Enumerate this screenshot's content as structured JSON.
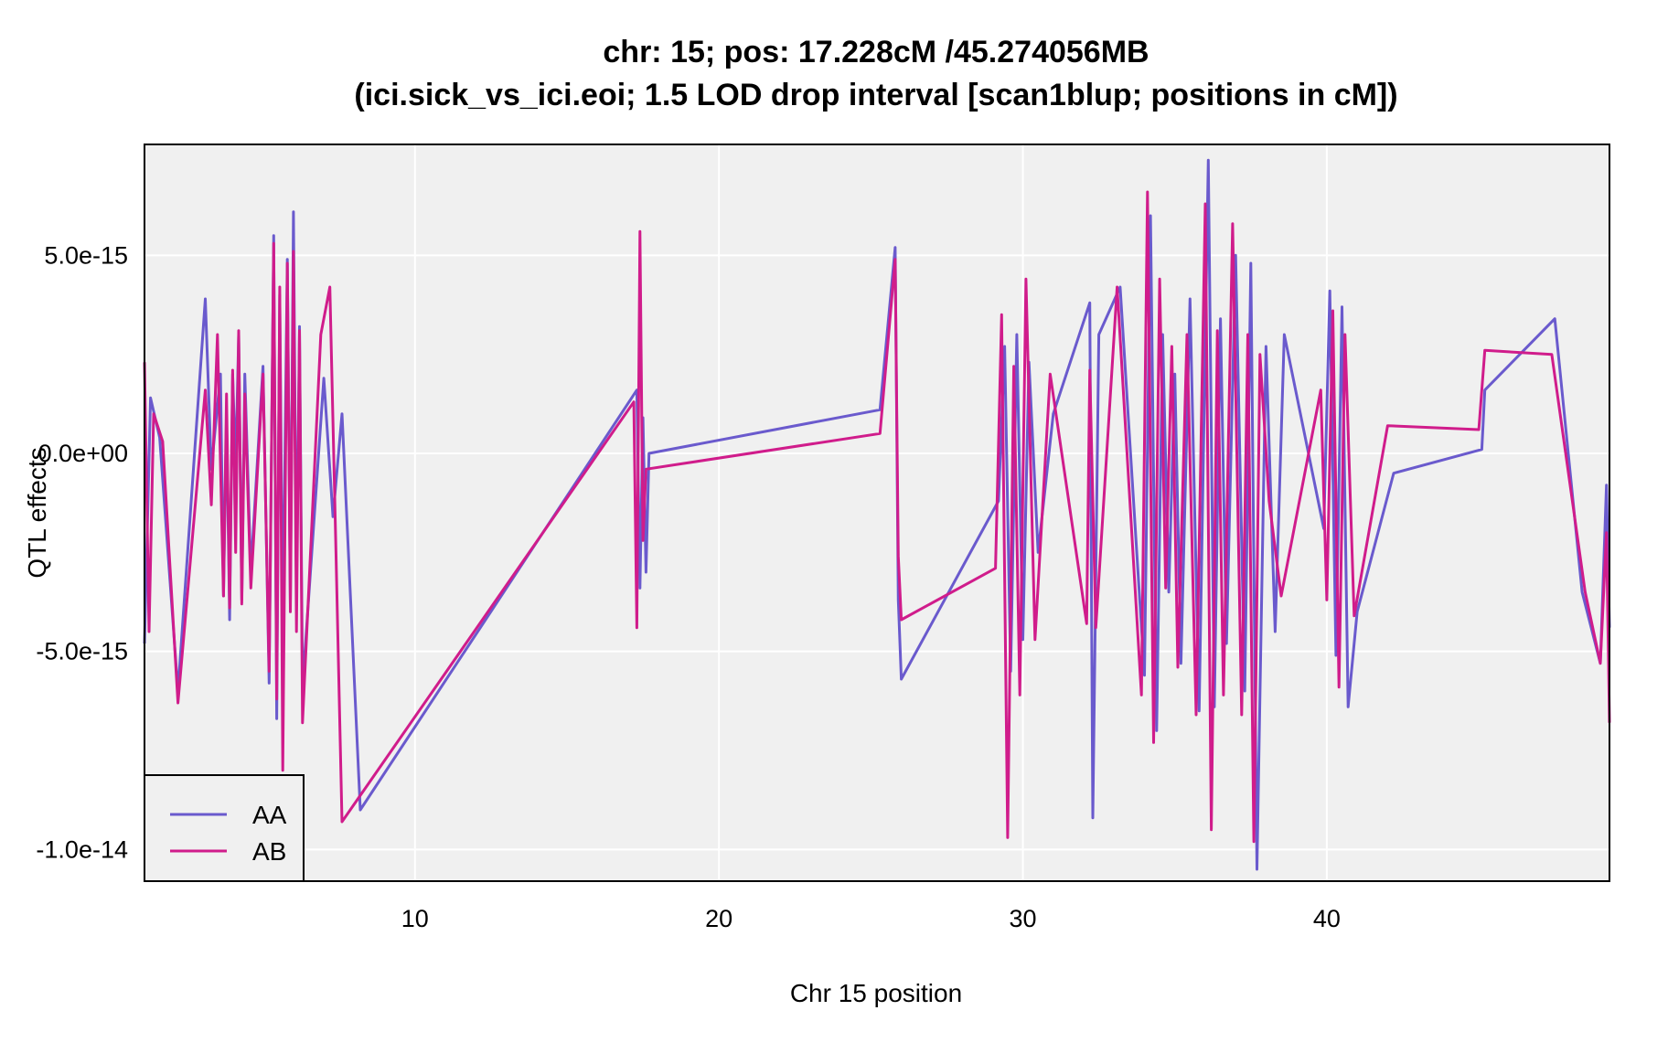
{
  "chart_data": {
    "type": "line",
    "title_line1": "chr: 15; pos: 17.228cM /45.274056MB",
    "title_line2": "(ici.sick_vs_ici.eoi; 1.5 LOD drop interval [scan1blup; positions in cM])",
    "xlabel": "Chr 15 position",
    "ylabel": "QTL effects",
    "xlim": [
      1.1,
      49.3
    ],
    "ylim": [
      -1.08e-14,
      7.8e-15
    ],
    "x_ticks": [
      {
        "value": 10,
        "label": "10"
      },
      {
        "value": 20,
        "label": "20"
      },
      {
        "value": 30,
        "label": "30"
      },
      {
        "value": 40,
        "label": "40"
      }
    ],
    "y_ticks": [
      {
        "value": 5e-15,
        "label": "5.0e-15"
      },
      {
        "value": 0,
        "label": "0.0e+00"
      },
      {
        "value": -5e-15,
        "label": "-5.0e-15"
      },
      {
        "value": -1e-14,
        "label": "-1.0e-14"
      }
    ],
    "grid": true,
    "legend_position": "bottom-left",
    "series": [
      {
        "name": "AA",
        "color": "#6A5ACD",
        "x": [
          1.1,
          1.3,
          1.6,
          2.2,
          3.1,
          3.3,
          3.6,
          3.7,
          3.8,
          3.9,
          4.0,
          4.1,
          4.2,
          4.3,
          4.4,
          4.6,
          5.0,
          5.2,
          5.35,
          5.45,
          5.55,
          5.65,
          5.8,
          5.9,
          6.0,
          6.1,
          6.2,
          6.3,
          7.0,
          7.3,
          7.6,
          8.2,
          17.3,
          17.4,
          17.5,
          17.6,
          17.7,
          25.3,
          25.8,
          25.9,
          26.0,
          29.2,
          29.4,
          29.6,
          29.8,
          30.0,
          30.2,
          30.5,
          31.0,
          32.2,
          32.3,
          32.5,
          33.2,
          34.0,
          34.2,
          34.4,
          34.6,
          34.8,
          35.0,
          35.2,
          35.5,
          35.8,
          36.1,
          36.3,
          36.5,
          36.7,
          37.0,
          37.3,
          37.5,
          37.7,
          38.0,
          38.3,
          38.6,
          39.9,
          40.1,
          40.3,
          40.5,
          40.7,
          41.0,
          42.2,
          45.1,
          45.2,
          47.5,
          48.4,
          49.0,
          49.2,
          49.3
        ],
        "y": [
          -4.8e-15,
          1.4e-15,
          4e-16,
          -6e-15,
          3.9e-15,
          -4e-16,
          2e-15,
          -3.6e-15,
          1e-15,
          -4.2e-15,
          2e-15,
          -4e-16,
          3e-15,
          -3.7e-15,
          2e-15,
          -3e-15,
          2.2e-15,
          -5.8e-15,
          5.5e-15,
          -6.7e-15,
          4e-15,
          -4.6e-15,
          4.9e-15,
          -3.8e-15,
          6.1e-15,
          -3.5e-15,
          3.2e-15,
          -5.9e-15,
          1.9e-15,
          -1.6e-15,
          1e-15,
          -9e-15,
          1.6e-15,
          -3.4e-15,
          9e-16,
          -3e-15,
          0.0,
          1.1e-15,
          5.2e-15,
          -3.7e-15,
          -5.7e-15,
          -1.2e-15,
          2.7e-15,
          -5.5e-15,
          3e-15,
          -4.7e-15,
          2.3e-15,
          -2.5e-15,
          1e-15,
          3.8e-15,
          -9.2e-15,
          3e-15,
          4.2e-15,
          -5.6e-15,
          6e-15,
          -7e-15,
          3e-15,
          -3.5e-15,
          2e-15,
          -5.3e-15,
          3.9e-15,
          -6.5e-15,
          7.4e-15,
          -6.4e-15,
          3.4e-15,
          -4.8e-15,
          5e-15,
          -6e-15,
          4.8e-15,
          -1.05e-14,
          2.7e-15,
          -4.5e-15,
          3e-15,
          -1.9e-15,
          4.1e-15,
          -5.1e-15,
          3.7e-15,
          -6.4e-15,
          -4e-15,
          -5e-16,
          1e-16,
          1.6e-15,
          3.4e-15,
          -3.5e-15,
          -5.3e-15,
          -8e-16,
          -4.4e-15
        ]
      },
      {
        "name": "AB",
        "color": "#D01C8B",
        "x": [
          1.1,
          1.25,
          1.4,
          1.7,
          2.2,
          3.1,
          3.3,
          3.5,
          3.7,
          3.8,
          3.9,
          4.0,
          4.1,
          4.2,
          4.3,
          4.4,
          4.6,
          5.0,
          5.2,
          5.35,
          5.45,
          5.55,
          5.65,
          5.8,
          5.9,
          6.0,
          6.1,
          6.2,
          6.3,
          6.9,
          7.2,
          7.4,
          7.6,
          17.2,
          17.3,
          17.4,
          17.5,
          17.6,
          25.3,
          25.8,
          25.9,
          26.0,
          29.1,
          29.3,
          29.5,
          29.7,
          29.9,
          30.1,
          30.4,
          30.9,
          32.1,
          32.2,
          32.4,
          33.1,
          33.9,
          34.1,
          34.3,
          34.5,
          34.7,
          34.9,
          35.1,
          35.4,
          35.7,
          36.0,
          36.2,
          36.4,
          36.6,
          36.9,
          37.2,
          37.4,
          37.6,
          37.8,
          38.1,
          38.5,
          39.8,
          40.0,
          40.2,
          40.4,
          40.6,
          40.9,
          42.0,
          45.0,
          45.2,
          47.4,
          48.5,
          49.0,
          49.2,
          49.3
        ],
        "y": [
          2.3e-15,
          -4.5e-15,
          1e-15,
          3e-16,
          -6.3e-15,
          1.6e-15,
          -1.3e-15,
          3e-15,
          -3.6e-15,
          1.5e-15,
          -3.9e-15,
          2.1e-15,
          -2.5e-15,
          3.1e-15,
          -3.8e-15,
          1.5e-15,
          -3.4e-15,
          2e-15,
          -5.5e-15,
          5.3e-15,
          -6.2e-15,
          4.2e-15,
          -8e-15,
          4.8e-15,
          -4e-15,
          5.1e-15,
          -4.5e-15,
          3.1e-15,
          -6.8e-15,
          3e-15,
          4.2e-15,
          -2.5e-15,
          -9.3e-15,
          1.3e-15,
          -4.4e-15,
          5.6e-15,
          -2.2e-15,
          -4e-16,
          5e-16,
          4.9e-15,
          -2.6e-15,
          -4.2e-15,
          -2.9e-15,
          3.5e-15,
          -9.7e-15,
          2.2e-15,
          -6.1e-15,
          4.4e-15,
          -4.7e-15,
          2e-15,
          -4.3e-15,
          2.1e-15,
          -4.4e-15,
          4.2e-15,
          -6.1e-15,
          6.6e-15,
          -7.3e-15,
          4.4e-15,
          -3.4e-15,
          2.7e-15,
          -5.4e-15,
          3e-15,
          -6.6e-15,
          6.3e-15,
          -9.5e-15,
          3.1e-15,
          -6.1e-15,
          5.8e-15,
          -6.6e-15,
          3e-15,
          -9.8e-15,
          2.5e-15,
          -1.2e-15,
          -3.6e-15,
          1.6e-15,
          -3.7e-15,
          3.6e-15,
          -5.9e-15,
          3e-15,
          -4.1e-15,
          7e-16,
          6e-16,
          2.6e-15,
          2.5e-15,
          -3.5e-15,
          -5.3e-15,
          -2e-15,
          -6.8e-15
        ]
      }
    ]
  }
}
